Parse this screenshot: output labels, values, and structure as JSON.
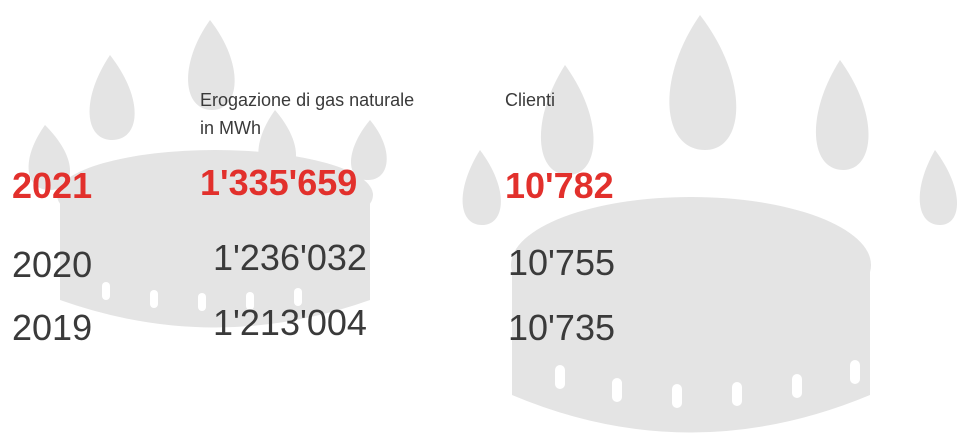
{
  "table": {
    "header": {
      "supply": [
        "Erogazione di gas naturale",
        "in MWh"
      ],
      "clients": "Clienti"
    },
    "rows": [
      [
        "2021",
        "1'335'659",
        "10'782"
      ],
      [
        "2020",
        "1'236'032",
        "10'755"
      ],
      [
        "2019",
        "1'213'004",
        "10'735"
      ]
    ]
  }
}
